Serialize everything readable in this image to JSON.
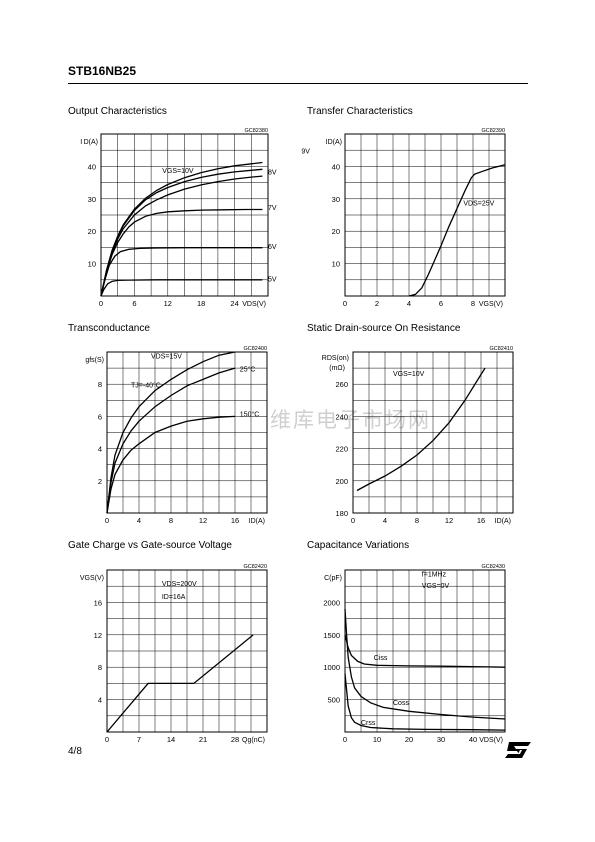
{
  "header": {
    "title": "STB16NB25"
  },
  "footer": {
    "page": "4/8"
  },
  "logo": {
    "name": "st-logo-icon"
  },
  "watermark": {
    "text": "维库电子市场网"
  },
  "chart_data": [
    {
      "id": "output",
      "type": "line",
      "title": "Output Characteristics",
      "code": "GC82380",
      "ylabel": "I D(A)",
      "xlabel": "VDS(V)",
      "xlim": [
        0,
        30
      ],
      "ylim": [
        0,
        50
      ],
      "xticks": [
        0,
        6,
        12,
        18,
        24
      ],
      "yticks": [
        10,
        20,
        30,
        40
      ],
      "annotations": [
        {
          "text": "VGS=10V",
          "x": 11,
          "y": 38
        }
      ],
      "series": [
        {
          "name": "9V",
          "label_x": 36,
          "label_y": 44,
          "points": [
            [
              0,
              0
            ],
            [
              1,
              8
            ],
            [
              2,
              14
            ],
            [
              3,
              18.5
            ],
            [
              4,
              22
            ],
            [
              6,
              26.8
            ],
            [
              8,
              30.2
            ],
            [
              10,
              32.6
            ],
            [
              12,
              34.4
            ],
            [
              15,
              36.5
            ],
            [
              18,
              38.1
            ],
            [
              21,
              39.3
            ],
            [
              24,
              40.2
            ],
            [
              27,
              40.8
            ],
            [
              29,
              41.2
            ]
          ]
        },
        {
          "name": "8V",
          "label_x": 30,
          "label_y": 37.5,
          "points": [
            [
              0,
              0
            ],
            [
              1,
              8
            ],
            [
              2,
              14
            ],
            [
              3,
              18.3
            ],
            [
              4,
              21.7
            ],
            [
              6,
              26.4
            ],
            [
              8,
              29.7
            ],
            [
              10,
              31.9
            ],
            [
              12,
              33.5
            ],
            [
              15,
              35.3
            ],
            [
              18,
              36.6
            ],
            [
              21,
              37.6
            ],
            [
              24,
              38.3
            ],
            [
              27,
              38.8
            ],
            [
              29,
              39.1
            ]
          ]
        },
        {
          "name": "",
          "label_x": 0,
          "label_y": 0,
          "points": [
            [
              0,
              0
            ],
            [
              1,
              7.8
            ],
            [
              2,
              13.5
            ],
            [
              3,
              17.6
            ],
            [
              4,
              20.8
            ],
            [
              6,
              25
            ],
            [
              8,
              27.8
            ],
            [
              10,
              29.7
            ],
            [
              12,
              31.2
            ],
            [
              15,
              33
            ],
            [
              18,
              34.3
            ],
            [
              21,
              35.3
            ],
            [
              24,
              36.1
            ],
            [
              27,
              36.7
            ],
            [
              29,
              37
            ]
          ]
        },
        {
          "name": "7V",
          "label_x": 30,
          "label_y": 26.5,
          "points": [
            [
              0,
              0
            ],
            [
              1,
              7.5
            ],
            [
              2,
              12.8
            ],
            [
              3,
              16.5
            ],
            [
              4,
              19.2
            ],
            [
              5,
              21.3
            ],
            [
              6,
              22.8
            ],
            [
              8,
              24.6
            ],
            [
              10,
              25.5
            ],
            [
              12,
              26
            ],
            [
              15,
              26.3
            ],
            [
              18,
              26.5
            ],
            [
              22,
              26.6
            ],
            [
              26,
              26.7
            ],
            [
              29,
              26.7
            ]
          ]
        },
        {
          "name": "6V",
          "label_x": 30,
          "label_y": 14.5,
          "points": [
            [
              0,
              0
            ],
            [
              0.7,
              5
            ],
            [
              1.5,
              9.5
            ],
            [
              2.5,
              12.3
            ],
            [
              3.5,
              13.7
            ],
            [
              5,
              14.4
            ],
            [
              7,
              14.7
            ],
            [
              10,
              14.8
            ],
            [
              15,
              14.9
            ],
            [
              20,
              14.9
            ],
            [
              25,
              14.9
            ],
            [
              29,
              14.9
            ]
          ]
        },
        {
          "name": "5V",
          "label_x": 30,
          "label_y": 4.5,
          "points": [
            [
              0,
              0
            ],
            [
              0.5,
              2
            ],
            [
              1.2,
              3.8
            ],
            [
              2,
              4.5
            ],
            [
              3,
              4.8
            ],
            [
              5,
              4.9
            ],
            [
              10,
              5
            ],
            [
              20,
              5
            ],
            [
              29,
              5
            ]
          ]
        }
      ]
    },
    {
      "id": "transfer",
      "type": "line",
      "title": "Transfer Characteristics",
      "code": "GC82390",
      "ylabel": "ID(A)",
      "xlabel": "VGS(V)",
      "xlim": [
        0,
        10
      ],
      "ylim": [
        0,
        50
      ],
      "xticks": [
        0,
        2,
        4,
        6,
        8
      ],
      "yticks": [
        10,
        20,
        30,
        40
      ],
      "annotations": [
        {
          "text": "VDS=25V",
          "x": 7.4,
          "y": 28
        }
      ],
      "series": [
        {
          "name": "",
          "label_x": 0,
          "label_y": 0,
          "points": [
            [
              4,
              0
            ],
            [
              4.4,
              0.5
            ],
            [
              4.8,
              2.5
            ],
            [
              5.2,
              6.5
            ],
            [
              5.6,
              11
            ],
            [
              6,
              15.5
            ],
            [
              6.5,
              21.5
            ],
            [
              7,
              27
            ],
            [
              7.5,
              32.5
            ],
            [
              7.9,
              36.5
            ],
            [
              8.1,
              37.6
            ],
            [
              8.6,
              38.5
            ],
            [
              9.2,
              39.5
            ],
            [
              10,
              40.5
            ]
          ]
        }
      ]
    },
    {
      "id": "transconductance",
      "type": "line",
      "title": "Transconductance",
      "code": "GC82400",
      "ylabel": "gfs(S)",
      "xlabel": "ID(A)",
      "xlim": [
        0,
        20
      ],
      "ylim": [
        0,
        10
      ],
      "xticks": [
        0,
        4,
        8,
        12,
        16
      ],
      "yticks": [
        2,
        4,
        6,
        8
      ],
      "annotations": [
        {
          "text": "VDS=15V",
          "x": 5.5,
          "y": 9.6
        },
        {
          "text": "TJ=-40°C",
          "x": 3,
          "y": 7.8
        }
      ],
      "series": [
        {
          "name": "",
          "label_x": 0,
          "label_y": 0,
          "points": [
            [
              0,
              0
            ],
            [
              0.5,
              2.2
            ],
            [
              1,
              3.6
            ],
            [
              2,
              5
            ],
            [
              3,
              5.9
            ],
            [
              4,
              6.6
            ],
            [
              6,
              7.6
            ],
            [
              8,
              8.3
            ],
            [
              10,
              8.9
            ],
            [
              12,
              9.4
            ],
            [
              14,
              9.8
            ],
            [
              16,
              10
            ]
          ]
        },
        {
          "name": "25°C",
          "label_x": 16.6,
          "label_y": 8.8,
          "points": [
            [
              0,
              0
            ],
            [
              0.5,
              1.9
            ],
            [
              1,
              3.1
            ],
            [
              2,
              4.3
            ],
            [
              3,
              5.1
            ],
            [
              4,
              5.7
            ],
            [
              6,
              6.6
            ],
            [
              8,
              7.3
            ],
            [
              10,
              7.9
            ],
            [
              12,
              8.3
            ],
            [
              14,
              8.7
            ],
            [
              16,
              9
            ]
          ]
        },
        {
          "name": "150°C",
          "label_x": 16.6,
          "label_y": 6,
          "points": [
            [
              0,
              0
            ],
            [
              0.5,
              1.5
            ],
            [
              1,
              2.4
            ],
            [
              2,
              3.3
            ],
            [
              3,
              3.9
            ],
            [
              4,
              4.3
            ],
            [
              6,
              5
            ],
            [
              8,
              5.4
            ],
            [
              10,
              5.7
            ],
            [
              12,
              5.85
            ],
            [
              14,
              5.95
            ],
            [
              16,
              6
            ]
          ]
        }
      ]
    },
    {
      "id": "rdson",
      "type": "line",
      "title": "Static Drain-source On Resistance",
      "code": "GC82410",
      "ylabel": "RDS(on)",
      "ylabel2": "(mΩ)",
      "xlabel": "ID(A)",
      "xlim": [
        0,
        20
      ],
      "ylim": [
        180,
        280
      ],
      "xticks": [
        0,
        4,
        8,
        12,
        16
      ],
      "yticks": [
        180,
        200,
        220,
        240,
        260
      ],
      "annotations": [
        {
          "text": "VGS=10V",
          "x": 5,
          "y": 265
        }
      ],
      "series": [
        {
          "name": "",
          "label_x": 0,
          "label_y": 0,
          "points": [
            [
              0.5,
              194
            ],
            [
              2,
              198
            ],
            [
              4,
              203
            ],
            [
              6,
              209
            ],
            [
              8,
              216
            ],
            [
              10,
              225
            ],
            [
              12,
              236
            ],
            [
              14,
              250
            ],
            [
              16,
              266
            ],
            [
              16.5,
              270
            ]
          ]
        }
      ]
    },
    {
      "id": "gatecharge",
      "type": "line",
      "title": "Gate Charge vs Gate-source Voltage",
      "code": "GC82420",
      "ylabel": "VGS(V)",
      "xlabel": "Qg(nC)",
      "xlim": [
        0,
        35
      ],
      "ylim": [
        0,
        20
      ],
      "xticks": [
        0,
        7,
        14,
        21,
        28
      ],
      "yticks": [
        4,
        8,
        12,
        16
      ],
      "annotations": [
        {
          "text": "VDS=200V",
          "x": 12,
          "y": 18
        },
        {
          "text": "ID=16A",
          "x": 12,
          "y": 16.4
        }
      ],
      "series": [
        {
          "name": "",
          "label_x": 0,
          "label_y": 0,
          "points": [
            [
              0,
              0
            ],
            [
              9,
              6
            ],
            [
              19,
              6
            ],
            [
              32,
              12
            ]
          ]
        }
      ]
    },
    {
      "id": "capacitance",
      "type": "line",
      "title": "Capacitance Variations",
      "code": "GC82430",
      "ylabel": "C(pF)",
      "xlabel": "VDS(V)",
      "xlim": [
        0,
        50
      ],
      "ylim": [
        0,
        2500
      ],
      "xticks": [
        0,
        10,
        20,
        30,
        40
      ],
      "yticks": [
        500,
        1000,
        1500,
        2000
      ],
      "annotations": [
        {
          "text": "f=1MHz",
          "x": 24,
          "y": 2400
        },
        {
          "text": "VGS=0V",
          "x": 24,
          "y": 2220
        }
      ],
      "series": [
        {
          "name": "Ciss",
          "label_x": 9,
          "label_y": 1110,
          "points": [
            [
              0,
              1500
            ],
            [
              1,
              1300
            ],
            [
              2,
              1180
            ],
            [
              4,
              1090
            ],
            [
              6,
              1050
            ],
            [
              10,
              1030
            ],
            [
              20,
              1020
            ],
            [
              30,
              1015
            ],
            [
              40,
              1010
            ],
            [
              50,
              1000
            ]
          ]
        },
        {
          "name": "Coss",
          "label_x": 15,
          "label_y": 420,
          "points": [
            [
              0,
              1900
            ],
            [
              0.5,
              1500
            ],
            [
              1,
              1150
            ],
            [
              2,
              850
            ],
            [
              3,
              680
            ],
            [
              5,
              550
            ],
            [
              8,
              450
            ],
            [
              12,
              380
            ],
            [
              20,
              320
            ],
            [
              30,
              270
            ],
            [
              40,
              230
            ],
            [
              50,
              200
            ]
          ]
        },
        {
          "name": "Crss",
          "label_x": 5,
          "label_y": 110,
          "points": [
            [
              0,
              900
            ],
            [
              0.5,
              650
            ],
            [
              1,
              400
            ],
            [
              2,
              220
            ],
            [
              3,
              150
            ],
            [
              5,
              100
            ],
            [
              8,
              70
            ],
            [
              15,
              50
            ],
            [
              25,
              40
            ],
            [
              40,
              35
            ],
            [
              50,
              30
            ]
          ]
        }
      ]
    }
  ]
}
